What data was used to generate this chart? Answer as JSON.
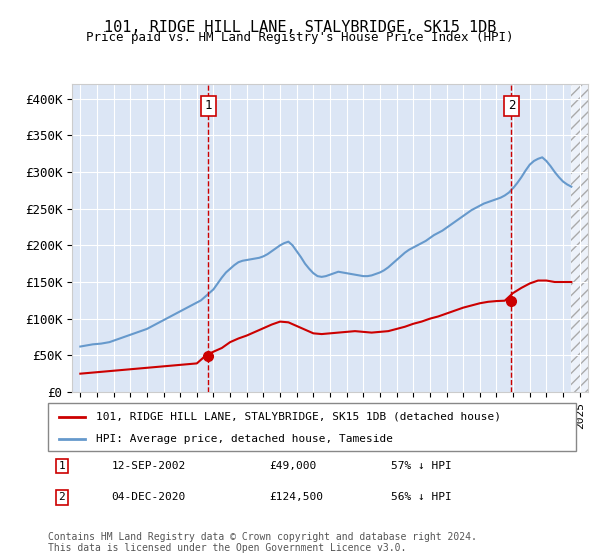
{
  "title": "101, RIDGE HILL LANE, STALYBRIDGE, SK15 1DB",
  "subtitle": "Price paid vs. HM Land Registry's House Price Index (HPI)",
  "legend_line1": "101, RIDGE HILL LANE, STALYBRIDGE, SK15 1DB (detached house)",
  "legend_line2": "HPI: Average price, detached house, Tameside",
  "annotation1": {
    "num": "1",
    "date": "12-SEP-2002",
    "price": "£49,000",
    "pct": "57% ↓ HPI",
    "x": 2002.7
  },
  "annotation2": {
    "num": "2",
    "date": "04-DEC-2020",
    "price": "£124,500",
    "pct": "56% ↓ HPI",
    "x": 2020.9
  },
  "footer1": "Contains HM Land Registry data © Crown copyright and database right 2024.",
  "footer2": "This data is licensed under the Open Government Licence v3.0.",
  "plot_bg": "#dce6f5",
  "red_color": "#cc0000",
  "blue_color": "#6699cc",
  "ylim": [
    0,
    420000
  ],
  "xlim": [
    1994.5,
    2025.5
  ],
  "yticks": [
    0,
    50000,
    100000,
    150000,
    200000,
    250000,
    300000,
    350000,
    400000
  ],
  "ytick_labels": [
    "£0",
    "£50K",
    "£100K",
    "£150K",
    "£200K",
    "£250K",
    "£300K",
    "£350K",
    "£400K"
  ],
  "xticks": [
    1995,
    1996,
    1997,
    1998,
    1999,
    2000,
    2001,
    2002,
    2003,
    2004,
    2005,
    2006,
    2007,
    2008,
    2009,
    2010,
    2011,
    2012,
    2013,
    2014,
    2015,
    2016,
    2017,
    2018,
    2019,
    2020,
    2021,
    2022,
    2023,
    2024,
    2025
  ],
  "hpi_x": [
    1995,
    1995.25,
    1995.5,
    1995.75,
    1996,
    1996.25,
    1996.5,
    1996.75,
    1997,
    1997.25,
    1997.5,
    1997.75,
    1998,
    1998.25,
    1998.5,
    1998.75,
    1999,
    1999.25,
    1999.5,
    1999.75,
    2000,
    2000.25,
    2000.5,
    2000.75,
    2001,
    2001.25,
    2001.5,
    2001.75,
    2002,
    2002.25,
    2002.5,
    2002.75,
    2003,
    2003.25,
    2003.5,
    2003.75,
    2004,
    2004.25,
    2004.5,
    2004.75,
    2005,
    2005.25,
    2005.5,
    2005.75,
    2006,
    2006.25,
    2006.5,
    2006.75,
    2007,
    2007.25,
    2007.5,
    2007.75,
    2008,
    2008.25,
    2008.5,
    2008.75,
    2009,
    2009.25,
    2009.5,
    2009.75,
    2010,
    2010.25,
    2010.5,
    2010.75,
    2011,
    2011.25,
    2011.5,
    2011.75,
    2012,
    2012.25,
    2012.5,
    2012.75,
    2013,
    2013.25,
    2013.5,
    2013.75,
    2014,
    2014.25,
    2014.5,
    2014.75,
    2015,
    2015.25,
    2015.5,
    2015.75,
    2016,
    2016.25,
    2016.5,
    2016.75,
    2017,
    2017.25,
    2017.5,
    2017.75,
    2018,
    2018.25,
    2018.5,
    2018.75,
    2019,
    2019.25,
    2019.5,
    2019.75,
    2020,
    2020.25,
    2020.5,
    2020.75,
    2021,
    2021.25,
    2021.5,
    2021.75,
    2022,
    2022.25,
    2022.5,
    2022.75,
    2023,
    2023.25,
    2023.5,
    2023.75,
    2024,
    2024.25,
    2024.5
  ],
  "hpi_y": [
    62000,
    63000,
    64000,
    65000,
    65500,
    66000,
    67000,
    68000,
    70000,
    72000,
    74000,
    76000,
    78000,
    80000,
    82000,
    84000,
    86000,
    89000,
    92000,
    95000,
    98000,
    101000,
    104000,
    107000,
    110000,
    113000,
    116000,
    119000,
    122000,
    125000,
    130000,
    135000,
    140000,
    148000,
    156000,
    163000,
    168000,
    173000,
    177000,
    179000,
    180000,
    181000,
    182000,
    183000,
    185000,
    188000,
    192000,
    196000,
    200000,
    203000,
    205000,
    200000,
    192000,
    184000,
    175000,
    168000,
    162000,
    158000,
    157000,
    158000,
    160000,
    162000,
    164000,
    163000,
    162000,
    161000,
    160000,
    159000,
    158000,
    158000,
    159000,
    161000,
    163000,
    166000,
    170000,
    175000,
    180000,
    185000,
    190000,
    194000,
    197000,
    200000,
    203000,
    206000,
    210000,
    214000,
    217000,
    220000,
    224000,
    228000,
    232000,
    236000,
    240000,
    244000,
    248000,
    251000,
    254000,
    257000,
    259000,
    261000,
    263000,
    265000,
    268000,
    272000,
    278000,
    285000,
    293000,
    302000,
    310000,
    315000,
    318000,
    320000,
    315000,
    308000,
    300000,
    293000,
    287000,
    283000,
    280000
  ],
  "price_x": [
    1995,
    1995.5,
    1996,
    1996.5,
    1997,
    1997.5,
    1998,
    1998.5,
    1999,
    1999.5,
    2000,
    2000.5,
    2001,
    2001.5,
    2002,
    2002.5,
    2003,
    2003.5,
    2004,
    2004.5,
    2005,
    2005.5,
    2006,
    2006.5,
    2007,
    2007.5,
    2008,
    2008.5,
    2009,
    2009.5,
    2010,
    2010.5,
    2011,
    2011.5,
    2012,
    2012.5,
    2013,
    2013.5,
    2014,
    2014.5,
    2015,
    2015.5,
    2016,
    2016.5,
    2017,
    2017.5,
    2018,
    2018.5,
    2019,
    2019.5,
    2020,
    2020.5,
    2021,
    2021.5,
    2022,
    2022.5,
    2023,
    2023.5,
    2024,
    2024.5
  ],
  "price_y": [
    25000,
    26000,
    27000,
    28000,
    29000,
    30000,
    31000,
    32000,
    33000,
    34000,
    35000,
    36000,
    37000,
    38000,
    39000,
    49000,
    55000,
    60000,
    68000,
    73000,
    77000,
    82000,
    87000,
    92000,
    96000,
    95000,
    90000,
    85000,
    80000,
    79000,
    80000,
    81000,
    82000,
    83000,
    82000,
    81000,
    82000,
    83000,
    86000,
    89000,
    93000,
    96000,
    100000,
    103000,
    107000,
    111000,
    115000,
    118000,
    121000,
    123000,
    124000,
    124500,
    135000,
    142000,
    148000,
    152000,
    152000,
    150000,
    150000,
    150000
  ]
}
